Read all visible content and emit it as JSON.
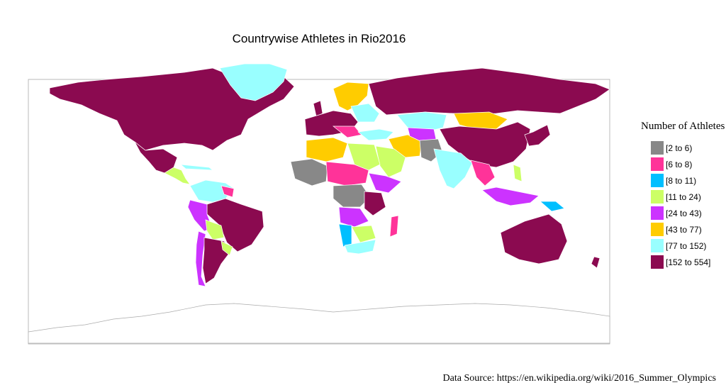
{
  "title": "Countrywise Athletes in Rio2016",
  "legend": {
    "title": "Number of Athletes",
    "items": [
      {
        "label": "[2 to 6)",
        "color": "#888888"
      },
      {
        "label": "[6 to 8)",
        "color": "#ff3399"
      },
      {
        "label": "[8 to 11)",
        "color": "#00bfff"
      },
      {
        "label": "[11 to 24)",
        "color": "#ccff66"
      },
      {
        "label": "[24 to 43)",
        "color": "#cc33ff"
      },
      {
        "label": "[43 to 77)",
        "color": "#ffcc00"
      },
      {
        "label": "[77 to 152)",
        "color": "#99ffff"
      },
      {
        "label": "[152 to 554]",
        "color": "#8b0a50"
      }
    ]
  },
  "source": "Data Source: https://en.wikipedia.org/wiki/2016_Summer_Olympics",
  "chart_data": {
    "type": "choropleth",
    "variable": "Number of Athletes",
    "bins": [
      "[2 to 6)",
      "[6 to 8)",
      "[8 to 11)",
      "[11 to 24)",
      "[24 to 43)",
      "[43 to 77)",
      "[77 to 152)",
      "[152 to 554]"
    ],
    "no_data_color": "#ffffff"
  }
}
